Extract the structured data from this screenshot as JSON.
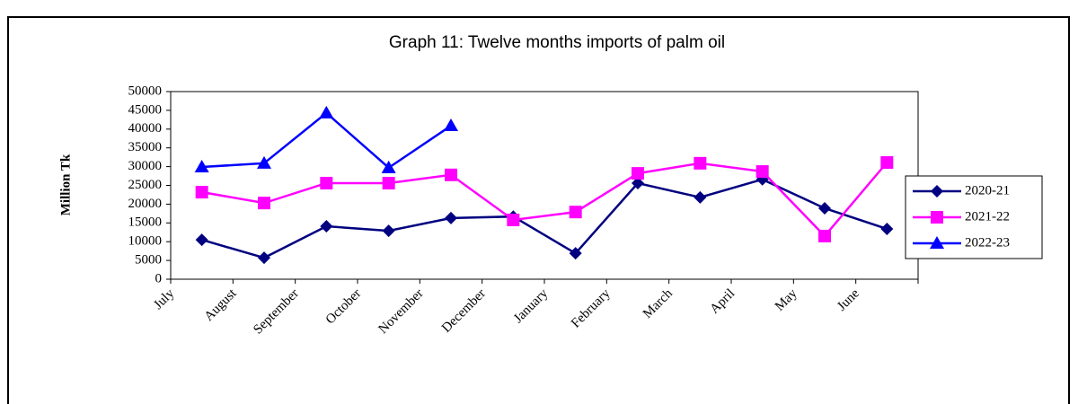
{
  "chart_data": {
    "type": "line",
    "title": "Graph 11: Twelve months imports of palm oil",
    "y_label": "Million Tk",
    "categories": [
      "July",
      "August",
      "September",
      "October",
      "November",
      "December",
      "January",
      "February",
      "March",
      "April",
      "May",
      "June"
    ],
    "series": [
      {
        "name": "2020-21",
        "color": "#000080",
        "marker": "diamond",
        "values": [
          10500,
          5700,
          14100,
          12900,
          16300,
          16700,
          6900,
          25600,
          21800,
          26600,
          18900,
          13400
        ]
      },
      {
        "name": "2021-22",
        "color": "#ff00ff",
        "marker": "square",
        "values": [
          23200,
          20300,
          25600,
          25600,
          27800,
          15800,
          17900,
          28200,
          30900,
          28700,
          11500,
          31100
        ]
      },
      {
        "name": "2022-23",
        "color": "#0000ff",
        "marker": "triangle",
        "values": [
          29900,
          30900,
          44300,
          29700,
          40900,
          null,
          null,
          null,
          null,
          null,
          null,
          null
        ]
      }
    ],
    "ylim": [
      0,
      50000
    ],
    "yticks": [
      0,
      5000,
      10000,
      15000,
      20000,
      25000,
      30000,
      35000,
      40000,
      45000,
      50000
    ],
    "grid": false,
    "legend": "right"
  }
}
